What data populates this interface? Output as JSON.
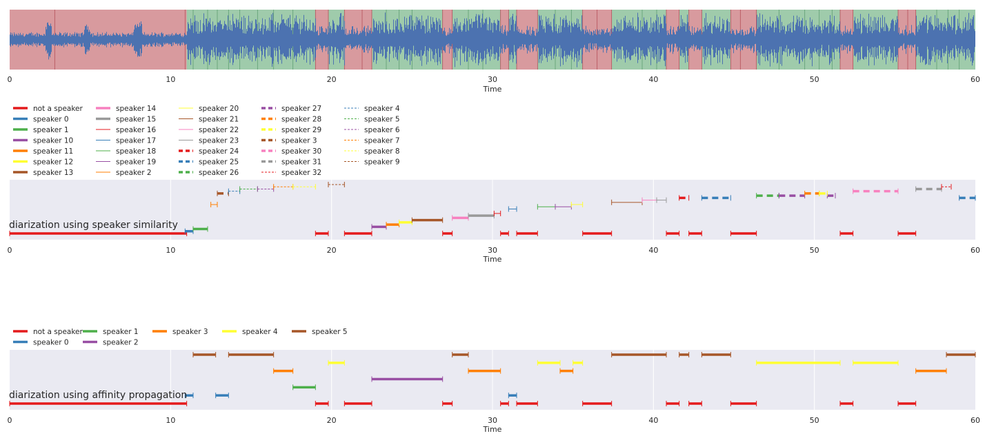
{
  "chart_data": [
    {
      "type": "waveform-with-segments",
      "xlabel": "Time",
      "xlim": [
        0,
        60
      ],
      "xticks": [
        0,
        10,
        20,
        30,
        40,
        50,
        60
      ],
      "colors": {
        "background": "#eaeaf2",
        "speech": "#9fcbab",
        "nonspeech": "#d89a9e",
        "wave": "#4c72b0"
      },
      "nonspeech_segments": [
        [
          0,
          11.0
        ],
        [
          19.0,
          19.8
        ],
        [
          20.8,
          22.5
        ],
        [
          26.9,
          27.5
        ],
        [
          30.5,
          31.0
        ],
        [
          31.5,
          32.8
        ],
        [
          35.6,
          37.4
        ],
        [
          40.8,
          41.6
        ],
        [
          42.2,
          43.0
        ],
        [
          44.8,
          46.4
        ],
        [
          51.6,
          52.4
        ],
        [
          55.2,
          56.3
        ]
      ],
      "boundaries": [
        2.8,
        10.9,
        11.4,
        12.3,
        12.9,
        13.6,
        14.3,
        15.4,
        16.4,
        17.6,
        19.0,
        19.8,
        20.8,
        21.9,
        22.5,
        23.4,
        24.2,
        25.0,
        26.9,
        27.5,
        28.5,
        29.4,
        30.5,
        31.0,
        31.5,
        32.8,
        33.9,
        34.9,
        35.6,
        36.5,
        37.4,
        39.3,
        40.2,
        40.8,
        41.6,
        42.2,
        43.0,
        44.8,
        45.4,
        46.4,
        47.8,
        49.4,
        50.3,
        51.1,
        51.6,
        52.4,
        55.2,
        55.8,
        56.3,
        57.6,
        58.3,
        59.0
      ]
    },
    {
      "type": "segment-timeline",
      "title": "diarization using speaker similarity",
      "xlabel": "Time",
      "xlim": [
        0,
        60
      ],
      "xticks": [
        0,
        10,
        20,
        30,
        40,
        50,
        60
      ],
      "legend_position": "above",
      "legend_columns": [
        [
          "not a speaker",
          "speaker 0",
          "speaker 1",
          "speaker 10",
          "speaker 11",
          "speaker 12",
          "speaker 13"
        ],
        [
          "speaker 14",
          "speaker 15",
          "speaker 16",
          "speaker 17",
          "speaker 18",
          "speaker 19",
          "speaker 2"
        ],
        [
          "speaker 20",
          "speaker 21",
          "speaker 22",
          "speaker 23",
          "speaker 24",
          "speaker 25",
          "speaker 26"
        ],
        [
          "speaker 27",
          "speaker 28",
          "speaker 29",
          "speaker 3",
          "speaker 30",
          "speaker 31",
          "speaker 32"
        ],
        [
          "speaker 4",
          "speaker 5",
          "speaker 6",
          "speaker 7",
          "speaker 8",
          "speaker 9"
        ]
      ],
      "series": [
        {
          "name": "not a speaker",
          "color": "#e41a1c",
          "style": "thick",
          "level": 0,
          "segments": [
            [
              0,
              11.0
            ],
            [
              19.0,
              19.8
            ],
            [
              20.8,
              22.5
            ],
            [
              26.9,
              27.5
            ],
            [
              30.5,
              31.0
            ],
            [
              31.5,
              32.8
            ],
            [
              35.6,
              37.4
            ],
            [
              40.8,
              41.6
            ],
            [
              42.2,
              43.0
            ],
            [
              44.8,
              46.4
            ],
            [
              51.6,
              52.4
            ],
            [
              55.2,
              56.3
            ]
          ]
        },
        {
          "name": "speaker 0",
          "color": "#377eb8",
          "style": "thick",
          "level": 1,
          "segments": [
            [
              10.9,
              11.4
            ]
          ]
        },
        {
          "name": "speaker 1",
          "color": "#4daf4a",
          "style": "thick",
          "level": 2,
          "segments": [
            [
              11.4,
              12.3
            ]
          ]
        },
        {
          "name": "speaker 10",
          "color": "#984ea3",
          "style": "thick",
          "level": 3,
          "segments": [
            [
              22.5,
              23.4
            ]
          ]
        },
        {
          "name": "speaker 11",
          "color": "#ff7f00",
          "style": "thick",
          "level": 4,
          "segments": [
            [
              23.4,
              24.2
            ]
          ]
        },
        {
          "name": "speaker 12",
          "color": "#ffff33",
          "style": "thick",
          "level": 5,
          "segments": [
            [
              24.2,
              25.0
            ]
          ]
        },
        {
          "name": "speaker 13",
          "color": "#a65628",
          "style": "thick",
          "level": 6,
          "segments": [
            [
              25.0,
              26.9
            ]
          ]
        },
        {
          "name": "speaker 14",
          "color": "#f781bf",
          "style": "thick",
          "level": 7,
          "segments": [
            [
              27.5,
              28.5
            ]
          ]
        },
        {
          "name": "speaker 15",
          "color": "#999999",
          "style": "thick",
          "level": 8,
          "segments": [
            [
              28.5,
              30.1
            ]
          ]
        },
        {
          "name": "speaker 16",
          "color": "#e41a1c",
          "style": "thin",
          "level": 9,
          "segments": [
            [
              30.1,
              30.5
            ]
          ]
        },
        {
          "name": "speaker 17",
          "color": "#377eb8",
          "style": "thin",
          "level": 11,
          "segments": [
            [
              31.0,
              31.5
            ]
          ]
        },
        {
          "name": "speaker 18",
          "color": "#4daf4a",
          "style": "thin",
          "level": 12,
          "segments": [
            [
              32.8,
              33.9
            ]
          ]
        },
        {
          "name": "speaker 19",
          "color": "#984ea3",
          "style": "thin",
          "level": 12,
          "segments": [
            [
              33.9,
              34.9
            ]
          ]
        },
        {
          "name": "speaker 2",
          "color": "#ff7f00",
          "style": "thin",
          "level": 13,
          "segments": [
            [
              12.5,
              12.9
            ]
          ]
        },
        {
          "name": "speaker 20",
          "color": "#ffff33",
          "style": "thin",
          "level": 13,
          "segments": [
            [
              34.9,
              35.6
            ]
          ]
        },
        {
          "name": "speaker 21",
          "color": "#a65628",
          "style": "thin",
          "level": 14,
          "segments": [
            [
              37.4,
              39.3
            ]
          ]
        },
        {
          "name": "speaker 22",
          "color": "#f781bf",
          "style": "thin",
          "level": 15,
          "segments": [
            [
              39.3,
              40.2
            ]
          ]
        },
        {
          "name": "speaker 23",
          "color": "#999999",
          "style": "thin",
          "level": 15,
          "segments": [
            [
              40.2,
              40.8
            ]
          ]
        },
        {
          "name": "speaker 24",
          "color": "#e41a1c",
          "style": "dashed",
          "level": 16,
          "segments": [
            [
              41.6,
              42.2
            ]
          ]
        },
        {
          "name": "speaker 25",
          "color": "#377eb8",
          "style": "dashed",
          "level": 16,
          "segments": [
            [
              43.0,
              44.8
            ],
            [
              59.0,
              60.0
            ]
          ]
        },
        {
          "name": "speaker 26",
          "color": "#4daf4a",
          "style": "dashed",
          "level": 17,
          "segments": [
            [
              46.4,
              47.8
            ]
          ]
        },
        {
          "name": "speaker 27",
          "color": "#984ea3",
          "style": "dashed",
          "level": 17,
          "segments": [
            [
              47.8,
              49.4
            ],
            [
              50.8,
              51.3
            ]
          ]
        },
        {
          "name": "speaker 28",
          "color": "#ff7f00",
          "style": "dashed",
          "level": 18,
          "segments": [
            [
              49.4,
              50.3
            ]
          ]
        },
        {
          "name": "speaker 29",
          "color": "#ffff33",
          "style": "dashed",
          "level": 18,
          "segments": [
            [
              50.3,
              50.8
            ]
          ]
        },
        {
          "name": "speaker 3",
          "color": "#a65628",
          "style": "dashed",
          "level": 18,
          "segments": [
            [
              12.9,
              13.6
            ]
          ]
        },
        {
          "name": "speaker 30",
          "color": "#f781bf",
          "style": "dashed",
          "level": 19,
          "segments": [
            [
              52.4,
              55.2
            ]
          ]
        },
        {
          "name": "speaker 31",
          "color": "#999999",
          "style": "dashed",
          "level": 20,
          "segments": [
            [
              56.3,
              57.9
            ]
          ]
        },
        {
          "name": "speaker 32",
          "color": "#e41a1c",
          "style": "dotted",
          "level": 21,
          "segments": [
            [
              57.9,
              58.5
            ]
          ]
        },
        {
          "name": "speaker 4",
          "color": "#377eb8",
          "style": "dotted",
          "level": 19,
          "segments": [
            [
              13.6,
              14.3
            ]
          ]
        },
        {
          "name": "speaker 5",
          "color": "#4daf4a",
          "style": "dotted",
          "level": 20,
          "segments": [
            [
              14.3,
              15.4
            ]
          ]
        },
        {
          "name": "speaker 6",
          "color": "#984ea3",
          "style": "dotted",
          "level": 20,
          "segments": [
            [
              15.4,
              16.4
            ]
          ]
        },
        {
          "name": "speaker 7",
          "color": "#ff7f00",
          "style": "dotted",
          "level": 21,
          "segments": [
            [
              16.4,
              17.6
            ]
          ]
        },
        {
          "name": "speaker 8",
          "color": "#ffff33",
          "style": "dotted",
          "level": 21,
          "segments": [
            [
              17.6,
              19.0
            ]
          ]
        },
        {
          "name": "speaker 9",
          "color": "#a65628",
          "style": "dotted",
          "level": 22,
          "segments": [
            [
              19.8,
              20.8
            ]
          ]
        }
      ]
    },
    {
      "type": "segment-timeline",
      "title": "diarization using affinity propagation",
      "xlabel": "Time",
      "xlim": [
        0,
        60
      ],
      "xticks": [
        0,
        10,
        20,
        30,
        40,
        50,
        60
      ],
      "legend_position": "above",
      "legend_columns": [
        [
          "not a speaker",
          "speaker 0"
        ],
        [
          "speaker 1",
          "speaker 2"
        ],
        [
          "speaker 3"
        ],
        [
          "speaker 4"
        ],
        [
          "speaker 5"
        ]
      ],
      "series": [
        {
          "name": "not a speaker",
          "color": "#e41a1c",
          "style": "thick",
          "level": 0,
          "segments": [
            [
              0,
              11.0
            ],
            [
              19.0,
              19.8
            ],
            [
              20.8,
              22.5
            ],
            [
              26.9,
              27.5
            ],
            [
              30.5,
              31.0
            ],
            [
              31.5,
              32.8
            ],
            [
              35.6,
              37.4
            ],
            [
              40.8,
              41.6
            ],
            [
              42.2,
              43.0
            ],
            [
              44.8,
              46.4
            ],
            [
              51.6,
              52.4
            ],
            [
              55.2,
              56.3
            ]
          ]
        },
        {
          "name": "speaker 0",
          "color": "#377eb8",
          "style": "thick",
          "level": 1,
          "segments": [
            [
              10.9,
              11.4
            ],
            [
              12.8,
              13.6
            ],
            [
              31.0,
              31.5
            ]
          ]
        },
        {
          "name": "speaker 1",
          "color": "#4daf4a",
          "style": "thick",
          "level": 2,
          "segments": [
            [
              17.6,
              19.0
            ]
          ]
        },
        {
          "name": "speaker 2",
          "color": "#984ea3",
          "style": "thick",
          "level": 3,
          "segments": [
            [
              22.5,
              26.9
            ]
          ]
        },
        {
          "name": "speaker 3",
          "color": "#ff7f00",
          "style": "thick",
          "level": 4,
          "segments": [
            [
              16.4,
              17.6
            ],
            [
              28.5,
              30.5
            ],
            [
              34.2,
              35.0
            ],
            [
              56.3,
              58.2
            ]
          ]
        },
        {
          "name": "speaker 4",
          "color": "#ffff33",
          "style": "thick",
          "level": 5,
          "segments": [
            [
              19.8,
              20.8
            ],
            [
              32.8,
              34.2
            ],
            [
              35.0,
              35.6
            ],
            [
              46.4,
              51.6
            ],
            [
              52.4,
              55.2
            ]
          ]
        },
        {
          "name": "speaker 5",
          "color": "#a65628",
          "style": "thick",
          "level": 6,
          "segments": [
            [
              11.4,
              12.8
            ],
            [
              13.6,
              16.4
            ],
            [
              27.5,
              28.5
            ],
            [
              37.4,
              40.8
            ],
            [
              41.6,
              42.2
            ],
            [
              43.0,
              44.8
            ],
            [
              58.2,
              60.0
            ]
          ]
        }
      ]
    }
  ]
}
